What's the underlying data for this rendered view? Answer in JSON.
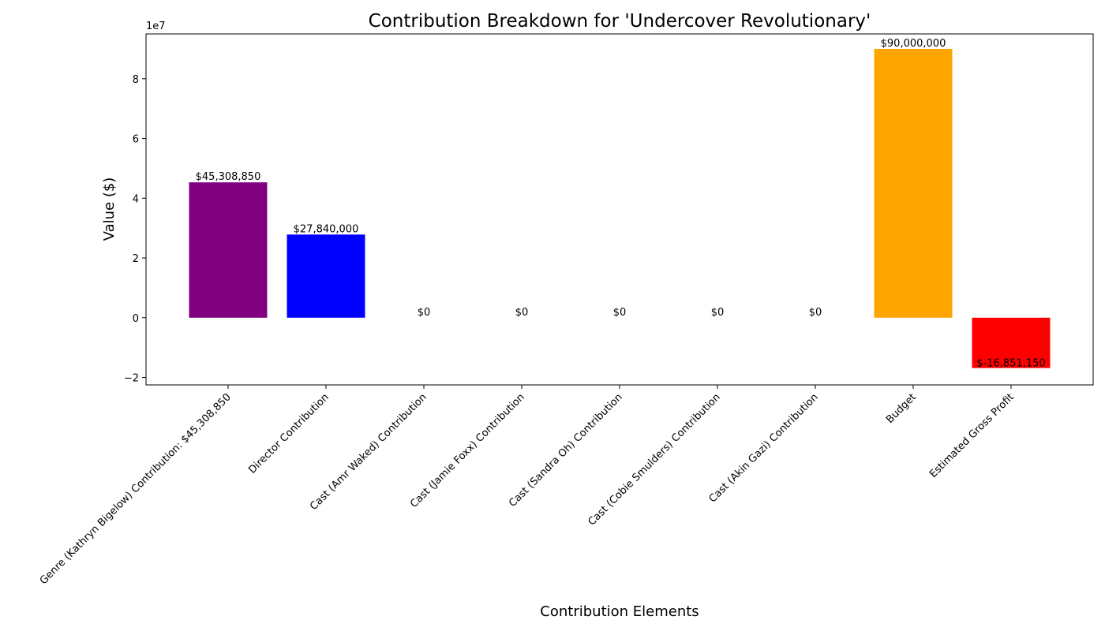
{
  "chart_data": {
    "type": "bar",
    "title": "Contribution Breakdown for 'Undercover Revolutionary'",
    "xlabel": "Contribution Elements",
    "ylabel": "Value ($)",
    "y_scale_label": "1e7",
    "ylim": [
      -22500000,
      95000000
    ],
    "yticks": [
      -20000000,
      0,
      20000000,
      40000000,
      60000000,
      80000000
    ],
    "ytick_labels": [
      "−2",
      "0",
      "2",
      "4",
      "6",
      "8"
    ],
    "grid": false,
    "categories": [
      "Genre (Kathryn Bigelow) Contribution: $45,308,850",
      "Director Contribution",
      "Cast (Amr Waked) Contribution",
      "Cast (Jamie Foxx) Contribution",
      "Cast (Sandra Oh) Contribution",
      "Cast (Cobie Smulders) Contribution",
      "Cast (Akin Gazi) Contribution",
      "Budget",
      "Estimated Gross Profit"
    ],
    "values": [
      45308850,
      27840000,
      0,
      0,
      0,
      0,
      0,
      90000000,
      -16851150
    ],
    "value_labels": [
      "$45,308,850",
      "$27,840,000",
      "$0",
      "$0",
      "$0",
      "$0",
      "$0",
      "$90,000,000",
      "$-16,851,150"
    ],
    "colors": [
      "#800080",
      "#0000ff",
      "#800080",
      "#800080",
      "#800080",
      "#800080",
      "#800080",
      "#ffa500",
      "#ff0000"
    ]
  }
}
